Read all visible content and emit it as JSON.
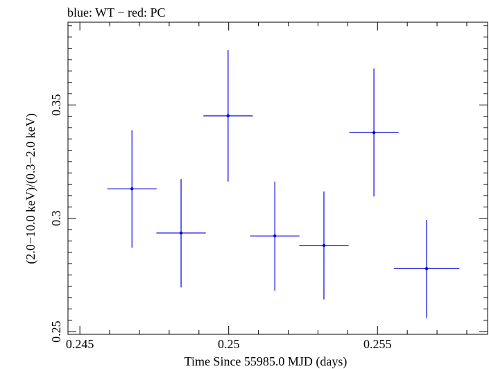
{
  "chart_data": {
    "type": "scatter",
    "title": "blue: WT − red: PC",
    "xlabel": "Time Since 55985.0 MJD (days)",
    "ylabel": "(2.0−10.0 keV)/(0.3−2.0 keV)",
    "xlim": [
      0.2446,
      0.2587
    ],
    "ylim": [
      0.2488,
      0.3865
    ],
    "x_ticks": [
      0.245,
      0.25,
      0.255
    ],
    "x_tick_labels": [
      "0.245",
      "0.25",
      "0.255"
    ],
    "y_ticks": [
      0.25,
      0.3,
      0.35
    ],
    "y_tick_labels": [
      "0.25",
      "0.3",
      "0.35"
    ],
    "grid": false,
    "series": [
      {
        "color": "#0000dd",
        "points": [
          {
            "x": 0.24675,
            "y": 0.313,
            "xerr": 0.00083,
            "yerr_lo": 0.026,
            "yerr_hi": 0.0258
          },
          {
            "x": 0.2484,
            "y": 0.2935,
            "xerr": 0.00083,
            "yerr_lo": 0.024,
            "yerr_hi": 0.0238
          },
          {
            "x": 0.24998,
            "y": 0.3452,
            "xerr": 0.00083,
            "yerr_lo": 0.029,
            "yerr_hi": 0.029
          },
          {
            "x": 0.25155,
            "y": 0.2922,
            "xerr": 0.00083,
            "yerr_lo": 0.0242,
            "yerr_hi": 0.024
          },
          {
            "x": 0.2532,
            "y": 0.288,
            "xerr": 0.00083,
            "yerr_lo": 0.0238,
            "yerr_hi": 0.0238
          },
          {
            "x": 0.25488,
            "y": 0.3378,
            "xerr": 0.00083,
            "yerr_lo": 0.0282,
            "yerr_hi": 0.0283
          },
          {
            "x": 0.25665,
            "y": 0.2778,
            "xerr": 0.0011,
            "yerr_lo": 0.0218,
            "yerr_hi": 0.0215
          }
        ]
      }
    ]
  }
}
